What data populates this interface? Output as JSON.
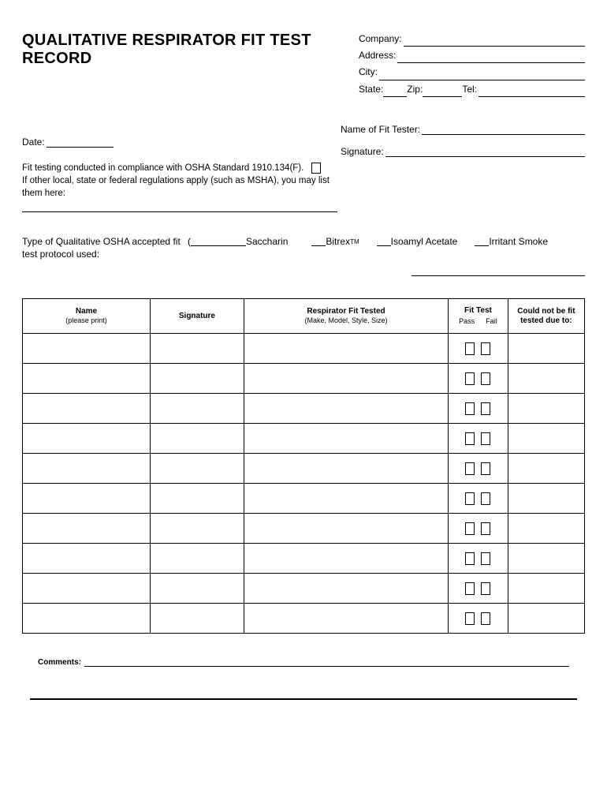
{
  "title": "QUALITATIVE RESPIRATOR FIT TEST RECORD",
  "company_fields": {
    "company": "Company:",
    "address": "Address:",
    "city": "City:",
    "state": "State:",
    "zip": "Zip:",
    "tel": "Tel:"
  },
  "date_label": "Date:",
  "compliance_text": "Fit testing conducted in compliance with OSHA Standard 1910.134(F).",
  "regulations_text": "If other local, state or federal regulations apply (such as MSHA), you may list them here:",
  "tester": {
    "name_label": "Name of Fit Tester:",
    "signature_label": "Signature:"
  },
  "protocol": {
    "label": "Type of Qualitative OSHA accepted fit test protocol used:",
    "options": {
      "saccharin": "Saccharin",
      "bitrex": "Bitrex",
      "bitrex_tm": "TM",
      "isoamyl": "Isoamyl Acetate",
      "irritant": "Irritant Smoke"
    }
  },
  "table": {
    "headers": {
      "name": "Name",
      "name_sub": "(please print)",
      "signature": "Signature",
      "respirator": "Respirator Fit Tested",
      "respirator_sub": "(Make, Model, Style, Size)",
      "fit_test": "Fit Test",
      "pass": "Pass",
      "fail": "Fail",
      "could_not": "Could not be fit tested due to:"
    },
    "row_count": 10
  },
  "comments_label": "Comments:",
  "colors": {
    "text": "#000000",
    "background": "#ffffff",
    "border": "#000000"
  }
}
